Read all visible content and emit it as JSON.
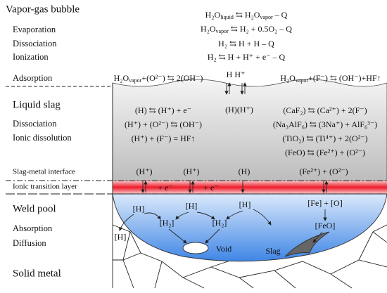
{
  "labels": [
    "Vapor-gas bubble",
    "Evaporation",
    "Dissociation",
    "Ionization",
    "Adsorption",
    "Liquid slag",
    "Dissociation",
    "Ionic dissolution",
    "Slag-metal interface",
    "Ionic transition layer",
    "Weld pool",
    "Absorption",
    "Diffusion",
    "Solid metal"
  ],
  "equations": [
    [
      "H₂O",
      {
        "sub": "liquid"
      },
      " ⇆ H₂O",
      {
        "sub": "vapor"
      },
      " – Q"
    ],
    [
      "H₂O",
      {
        "sub": "vapor"
      },
      " ⇆ H₂ + 0.5O₂ – Q"
    ],
    [
      "H₂ ⇆ H + H – Q"
    ],
    [
      "H₂ ⇆ H + H⁺ + e⁻ – Q"
    ],
    [
      "H₂O",
      {
        "sub": "vapor"
      },
      "+(O²⁻) ⇆ 2(OH⁻)"
    ],
    [
      "H  H⁺"
    ],
    [
      "H₂O",
      {
        "sub": "vapor"
      },
      "+(F⁻) ⇆ (OH⁻)+HF↑"
    ],
    [
      "(H) ⇆ (H⁺) + e⁻"
    ],
    [
      "(H⁺) + (O²⁻) ⇆ (OH⁻)"
    ],
    [
      "(H⁺) + (F⁻) = HF↑"
    ],
    [
      "(H)(H⁺)"
    ],
    [
      "(CaF₂) ⇆ (Ca²⁺) + 2(F⁻)"
    ],
    [
      "(Na₃AlF₆) ⇆ (3Na⁺) + AlF₆³⁻)"
    ],
    [
      "(TiO₂) ⇆ (Ti⁴⁺) + 2(O²⁻)"
    ],
    [
      "(FeO) ⇆ (Fe²⁺) + (O²⁻)"
    ],
    [
      "(H⁺)"
    ],
    [
      "(H⁺)"
    ],
    [
      "(H)"
    ],
    [
      "(Fe²⁺) + (O²⁻)"
    ],
    [
      "+ e⁻"
    ],
    [
      "+ e⁻"
    ],
    [
      "[H]"
    ],
    [
      "[H]"
    ],
    [
      "[H]"
    ],
    [
      "[H₂]"
    ],
    [
      "[H₂]"
    ],
    [
      "[Fe] + [O]"
    ],
    [
      "[FeO]"
    ],
    [
      "[H]"
    ],
    [
      "Void"
    ],
    [
      "Slag"
    ]
  ]
}
